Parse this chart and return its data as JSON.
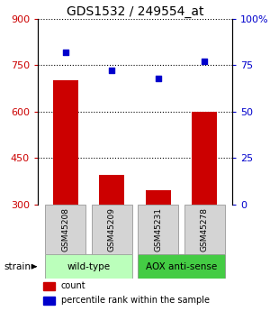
{
  "title": "GDS1532 / 249554_at",
  "samples": [
    "GSM45208",
    "GSM45209",
    "GSM45231",
    "GSM45278"
  ],
  "counts": [
    700,
    395,
    345,
    600
  ],
  "percentiles": [
    82,
    72,
    68,
    77
  ],
  "ylim_left": [
    300,
    900
  ],
  "ylim_right": [
    0,
    100
  ],
  "yticks_left": [
    300,
    450,
    600,
    750,
    900
  ],
  "yticks_right": [
    0,
    25,
    50,
    75,
    100
  ],
  "bar_color": "#cc0000",
  "dot_color": "#0000cc",
  "groups": [
    {
      "label": "wild-type",
      "color": "#bbffbb"
    },
    {
      "label": "AOX anti-sense",
      "color": "#44cc44"
    }
  ],
  "strain_label": "strain",
  "legend_count_label": "count",
  "legend_pct_label": "percentile rank within the sample",
  "box_color": "#d4d4d4",
  "box_edge": "#888888",
  "left_tick_color": "#cc0000",
  "right_tick_color": "#0000cc"
}
